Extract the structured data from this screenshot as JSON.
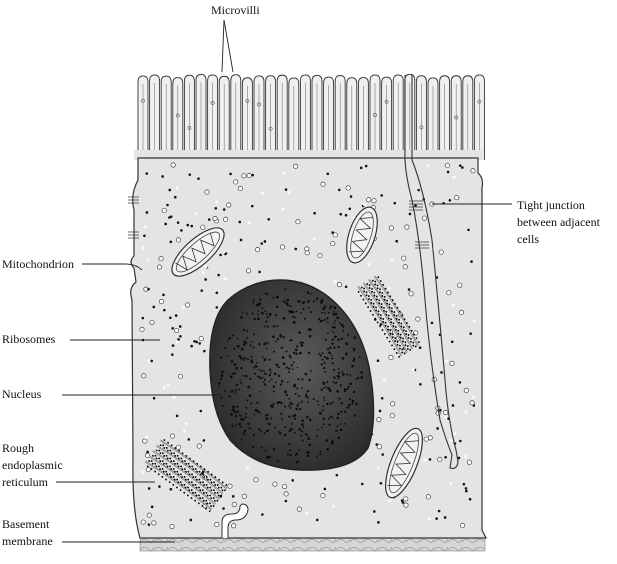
{
  "labels": {
    "microvilli": "Microvilli",
    "tight_junction_line1": "Tight junction",
    "tight_junction_line2": "between adjacent",
    "tight_junction_line3": "cells",
    "mitochondrion": "Mitochondrion",
    "ribosomes": "Ribosomes",
    "nucleus": "Nucleus",
    "rer_line1": "Rough",
    "rer_line2": "endoplasmic",
    "rer_line3": "reticulum",
    "basement_line1": "Basement",
    "basement_line2": "membrane"
  },
  "colors": {
    "cytoplasm": "#e4e4e4",
    "outline": "#333333",
    "nucleus_dark": "#2e2e2e",
    "nucleus_mid": "#555555",
    "basement": "#d2d2d2"
  }
}
